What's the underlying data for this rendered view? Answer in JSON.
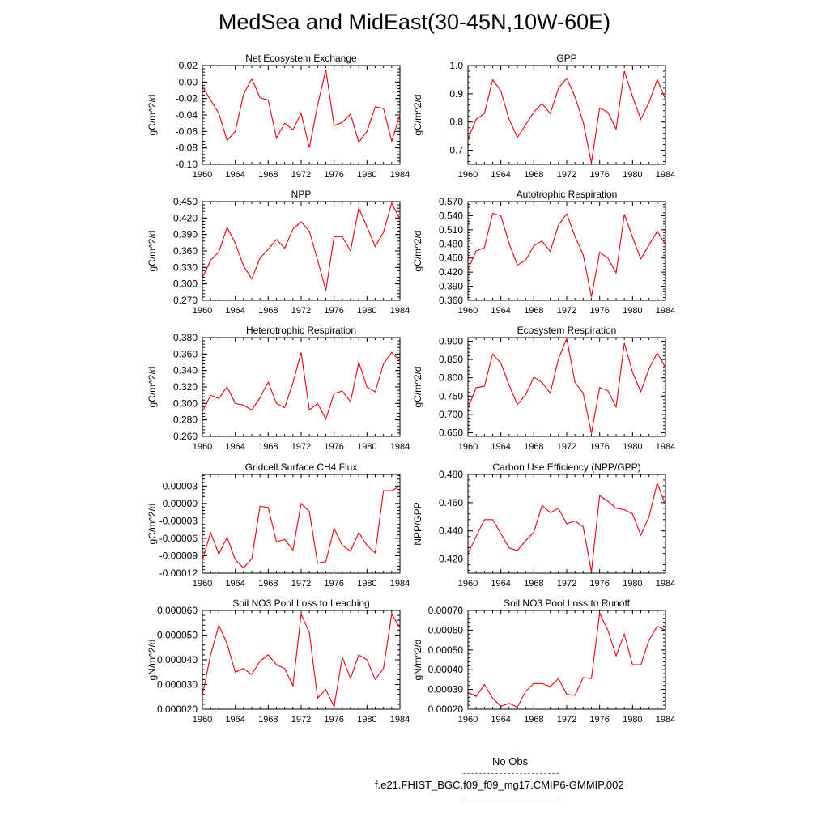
{
  "title": "MedSea and MidEast(30-45N,10W-60E)",
  "colors": {
    "model_line": "#e8000b",
    "obs_line": "#6b6bd6",
    "axis": "#000000"
  },
  "legend": {
    "obs_label": "No Obs",
    "model_label": "f.e21.FHIST_BGC.f09_f09_mg17.CMIP6-GMMIP.002"
  },
  "chart_data": [
    {
      "type": "line",
      "title": "Net Ecosystem Exchange",
      "ylabel": "gC/m^2/d",
      "xlim": [
        1960,
        1984
      ],
      "ylim": [
        -0.1,
        0.02
      ],
      "x_ticks": [
        "1960",
        "1964",
        "1968",
        "1972",
        "1976",
        "1980",
        "1984"
      ],
      "y_tick_values": [
        -0.1,
        -0.08,
        -0.06,
        -0.04,
        -0.02,
        0.0,
        0.02
      ],
      "y_ticks": [
        "-0.10",
        "-0.08",
        "-0.06",
        "-0.04",
        "-0.02",
        "0.00",
        "0.02"
      ],
      "x": [
        1960,
        1961,
        1962,
        1963,
        1964,
        1965,
        1966,
        1967,
        1968,
        1969,
        1970,
        1971,
        1972,
        1973,
        1974,
        1975,
        1976,
        1977,
        1978,
        1979,
        1980,
        1981,
        1982,
        1983,
        1984
      ],
      "values": [
        -0.005,
        -0.022,
        -0.038,
        -0.071,
        -0.06,
        -0.015,
        0.004,
        -0.019,
        -0.022,
        -0.068,
        -0.05,
        -0.058,
        -0.038,
        -0.08,
        -0.028,
        0.015,
        -0.053,
        -0.049,
        -0.039,
        -0.073,
        -0.06,
        -0.03,
        -0.032,
        -0.072,
        -0.04
      ]
    },
    {
      "type": "line",
      "title": "GPP",
      "ylabel": "gC/m^2/d",
      "xlim": [
        1960,
        1984
      ],
      "ylim": [
        0.65,
        1.0
      ],
      "x_ticks": [
        "1960",
        "1964",
        "1968",
        "1972",
        "1976",
        "1980",
        "1984"
      ],
      "y_tick_values": [
        0.7,
        0.8,
        0.9,
        1.0
      ],
      "y_ticks": [
        "0.7",
        "0.8",
        "0.9",
        "1.0"
      ],
      "x": [
        1960,
        1961,
        1962,
        1963,
        1964,
        1965,
        1966,
        1967,
        1968,
        1969,
        1970,
        1971,
        1972,
        1973,
        1974,
        1975,
        1976,
        1977,
        1978,
        1979,
        1980,
        1981,
        1982,
        1983,
        1984
      ],
      "values": [
        0.74,
        0.81,
        0.83,
        0.95,
        0.91,
        0.81,
        0.745,
        0.79,
        0.835,
        0.865,
        0.83,
        0.92,
        0.955,
        0.89,
        0.8,
        0.655,
        0.85,
        0.835,
        0.775,
        0.98,
        0.89,
        0.81,
        0.87,
        0.95,
        0.88
      ]
    },
    {
      "type": "line",
      "title": "NPP",
      "ylabel": "gC/m^2/d",
      "xlim": [
        1960,
        1984
      ],
      "ylim": [
        0.27,
        0.45
      ],
      "x_ticks": [
        "1960",
        "1964",
        "1968",
        "1972",
        "1976",
        "1980",
        "1984"
      ],
      "y_tick_values": [
        0.27,
        0.3,
        0.33,
        0.36,
        0.39,
        0.42,
        0.45
      ],
      "y_ticks": [
        "0.270",
        "0.300",
        "0.330",
        "0.360",
        "0.390",
        "0.420",
        "0.450"
      ],
      "x": [
        1960,
        1961,
        1962,
        1963,
        1964,
        1965,
        1966,
        1967,
        1968,
        1969,
        1970,
        1971,
        1972,
        1973,
        1974,
        1975,
        1976,
        1977,
        1978,
        1979,
        1980,
        1981,
        1982,
        1983,
        1984
      ],
      "values": [
        0.311,
        0.343,
        0.358,
        0.403,
        0.374,
        0.333,
        0.309,
        0.347,
        0.363,
        0.381,
        0.365,
        0.4,
        0.413,
        0.396,
        0.343,
        0.288,
        0.386,
        0.386,
        0.36,
        0.438,
        0.404,
        0.368,
        0.394,
        0.447,
        0.418
      ]
    },
    {
      "type": "line",
      "title": "Autotrophic Respiration",
      "ylabel": "gC/m^2/d",
      "xlim": [
        1960,
        1984
      ],
      "ylim": [
        0.36,
        0.57
      ],
      "x_ticks": [
        "1960",
        "1964",
        "1968",
        "1972",
        "1976",
        "1980",
        "1984"
      ],
      "y_tick_values": [
        0.36,
        0.39,
        0.42,
        0.45,
        0.48,
        0.51,
        0.54,
        0.57
      ],
      "y_ticks": [
        "0.360",
        "0.390",
        "0.420",
        "0.450",
        "0.480",
        "0.510",
        "0.540",
        "0.570"
      ],
      "x": [
        1960,
        1961,
        1962,
        1963,
        1964,
        1965,
        1966,
        1967,
        1968,
        1969,
        1970,
        1971,
        1972,
        1973,
        1974,
        1975,
        1976,
        1977,
        1978,
        1979,
        1980,
        1981,
        1982,
        1983,
        1984
      ],
      "values": [
        0.426,
        0.465,
        0.472,
        0.545,
        0.54,
        0.481,
        0.435,
        0.445,
        0.476,
        0.486,
        0.464,
        0.52,
        0.544,
        0.496,
        0.457,
        0.367,
        0.462,
        0.45,
        0.418,
        0.543,
        0.494,
        0.448,
        0.478,
        0.507,
        0.478
      ]
    },
    {
      "type": "line",
      "title": "Heterotrophic Respiration",
      "ylabel": "gC/m^2/d",
      "xlim": [
        1960,
        1984
      ],
      "ylim": [
        0.26,
        0.38
      ],
      "x_ticks": [
        "1960",
        "1964",
        "1968",
        "1972",
        "1976",
        "1980",
        "1984"
      ],
      "y_tick_values": [
        0.26,
        0.28,
        0.3,
        0.32,
        0.34,
        0.36,
        0.38
      ],
      "y_ticks": [
        "0.260",
        "0.280",
        "0.300",
        "0.320",
        "0.340",
        "0.360",
        "0.380"
      ],
      "x": [
        1960,
        1961,
        1962,
        1963,
        1964,
        1965,
        1966,
        1967,
        1968,
        1969,
        1970,
        1971,
        1972,
        1973,
        1974,
        1975,
        1976,
        1977,
        1978,
        1979,
        1980,
        1981,
        1982,
        1983,
        1984
      ],
      "values": [
        0.29,
        0.31,
        0.306,
        0.32,
        0.3,
        0.298,
        0.292,
        0.307,
        0.326,
        0.3,
        0.295,
        0.325,
        0.362,
        0.292,
        0.3,
        0.281,
        0.312,
        0.315,
        0.302,
        0.35,
        0.32,
        0.314,
        0.348,
        0.362,
        0.352
      ]
    },
    {
      "type": "line",
      "title": "Ecosystem Respiration",
      "ylabel": "gC/m^2/d",
      "xlim": [
        1960,
        1984
      ],
      "ylim": [
        0.64,
        0.91
      ],
      "x_ticks": [
        "1960",
        "1964",
        "1968",
        "1972",
        "1976",
        "1980",
        "1984"
      ],
      "y_tick_values": [
        0.65,
        0.7,
        0.75,
        0.8,
        0.85,
        0.9
      ],
      "y_ticks": [
        "0.650",
        "0.700",
        "0.750",
        "0.800",
        "0.850",
        "0.900"
      ],
      "x": [
        1960,
        1961,
        1962,
        1963,
        1964,
        1965,
        1966,
        1967,
        1968,
        1969,
        1970,
        1971,
        1972,
        1973,
        1974,
        1975,
        1976,
        1977,
        1978,
        1979,
        1980,
        1981,
        1982,
        1983,
        1984
      ],
      "values": [
        0.717,
        0.773,
        0.777,
        0.865,
        0.84,
        0.78,
        0.727,
        0.753,
        0.802,
        0.787,
        0.758,
        0.852,
        0.907,
        0.788,
        0.758,
        0.648,
        0.773,
        0.765,
        0.72,
        0.895,
        0.815,
        0.762,
        0.825,
        0.868,
        0.828
      ]
    },
    {
      "type": "line",
      "title": "Gridcell Surface CH4 Flux",
      "ylabel": "gC/m^2/d",
      "xlim": [
        1960,
        1984
      ],
      "ylim": [
        -0.00012,
        5e-05
      ],
      "x_ticks": [
        "1960",
        "1964",
        "1968",
        "1972",
        "1976",
        "1980",
        "1984"
      ],
      "y_tick_values": [
        -0.00012,
        -9e-05,
        -6e-05,
        -3e-05,
        0.0,
        3e-05
      ],
      "y_ticks": [
        "-0.00012",
        "-0.00009",
        "-0.00006",
        "-0.00003",
        "0.00000",
        "0.00003"
      ],
      "x": [
        1960,
        1961,
        1962,
        1963,
        1964,
        1965,
        1966,
        1967,
        1968,
        1969,
        1970,
        1971,
        1972,
        1973,
        1974,
        1975,
        1976,
        1977,
        1978,
        1979,
        1980,
        1981,
        1982,
        1983,
        1984
      ],
      "values": [
        -9.8e-05,
        -5e-05,
        -8.7e-05,
        -5.8e-05,
        -9.7e-05,
        -0.000111,
        -9.5e-05,
        -5e-06,
        -7e-06,
        -6.6e-05,
        -6.2e-05,
        -8e-05,
        0.0,
        -1.4e-05,
        -0.000103,
        -0.0001,
        -4.3e-05,
        -7.2e-05,
        -8.2e-05,
        -5e-05,
        -7.2e-05,
        -8.5e-05,
        2.2e-05,
        2.2e-05,
        3e-05
      ]
    },
    {
      "type": "line",
      "title": "Carbon Use Efficiency (NPP/GPP)",
      "ylabel": "NPP/GPP",
      "xlim": [
        1960,
        1984
      ],
      "ylim": [
        0.41,
        0.48
      ],
      "x_ticks": [
        "1960",
        "1964",
        "1968",
        "1972",
        "1976",
        "1980",
        "1984"
      ],
      "y_tick_values": [
        0.42,
        0.44,
        0.46,
        0.48
      ],
      "y_ticks": [
        "0.420",
        "0.440",
        "0.460",
        "0.480"
      ],
      "x": [
        1960,
        1961,
        1962,
        1963,
        1964,
        1965,
        1966,
        1967,
        1968,
        1969,
        1970,
        1971,
        1972,
        1973,
        1974,
        1975,
        1976,
        1977,
        1978,
        1979,
        1980,
        1981,
        1982,
        1983,
        1984
      ],
      "values": [
        0.424,
        0.436,
        0.448,
        0.448,
        0.438,
        0.428,
        0.426,
        0.433,
        0.439,
        0.458,
        0.453,
        0.456,
        0.445,
        0.447,
        0.443,
        0.411,
        0.465,
        0.461,
        0.456,
        0.455,
        0.452,
        0.437,
        0.45,
        0.474,
        0.458
      ]
    },
    {
      "type": "line",
      "title": "Soil NO3 Pool Loss to Leaching",
      "ylabel": "gN/m^2/d",
      "xlim": [
        1960,
        1984
      ],
      "ylim": [
        2e-05,
        6e-05
      ],
      "x_ticks": [
        "1960",
        "1964",
        "1968",
        "1972",
        "1976",
        "1980",
        "1984"
      ],
      "y_tick_values": [
        2e-05,
        3e-05,
        4e-05,
        5e-05,
        6e-05
      ],
      "y_ticks": [
        "0.000020",
        "0.000030",
        "0.000040",
        "0.000050",
        "0.000060"
      ],
      "x": [
        1960,
        1961,
        1962,
        1963,
        1964,
        1965,
        1966,
        1967,
        1968,
        1969,
        1970,
        1971,
        1972,
        1973,
        1974,
        1975,
        1976,
        1977,
        1978,
        1979,
        1980,
        1981,
        1982,
        1983,
        1984
      ],
      "values": [
        2.55e-05,
        4.2e-05,
        5.4e-05,
        4.65e-05,
        3.5e-05,
        3.65e-05,
        3.4e-05,
        3.95e-05,
        4.2e-05,
        3.8e-05,
        3.65e-05,
        2.95e-05,
        5.85e-05,
        5.1e-05,
        2.45e-05,
        2.8e-05,
        2.1e-05,
        4.1e-05,
        3.25e-05,
        4.2e-05,
        4e-05,
        3.2e-05,
        3.65e-05,
        5.85e-05,
        5.3e-05
      ]
    },
    {
      "type": "line",
      "title": "Soil NO3 Pool Loss to Runoff",
      "ylabel": "gN/m^2/d",
      "xlim": [
        1960,
        1984
      ],
      "ylim": [
        0.0002,
        0.0007
      ],
      "x_ticks": [
        "1960",
        "1964",
        "1968",
        "1972",
        "1976",
        "1980",
        "1984"
      ],
      "y_tick_values": [
        0.0002,
        0.0003,
        0.0004,
        0.0005,
        0.0006,
        0.0007
      ],
      "y_ticks": [
        "0.00020",
        "0.00030",
        "0.00040",
        "0.00050",
        "0.00060",
        "0.00070"
      ],
      "x": [
        1960,
        1961,
        1962,
        1963,
        1964,
        1965,
        1966,
        1967,
        1968,
        1969,
        1970,
        1971,
        1972,
        1973,
        1974,
        1975,
        1976,
        1977,
        1978,
        1979,
        1980,
        1981,
        1982,
        1983,
        1984
      ],
      "values": [
        0.000285,
        0.000265,
        0.000325,
        0.000255,
        0.000215,
        0.00023,
        0.00021,
        0.00029,
        0.00033,
        0.00033,
        0.000315,
        0.000355,
        0.000275,
        0.00027,
        0.00036,
        0.000355,
        0.000685,
        0.0006,
        0.00047,
        0.00058,
        0.000425,
        0.000425,
        0.00055,
        0.00062,
        0.0006
      ]
    }
  ]
}
